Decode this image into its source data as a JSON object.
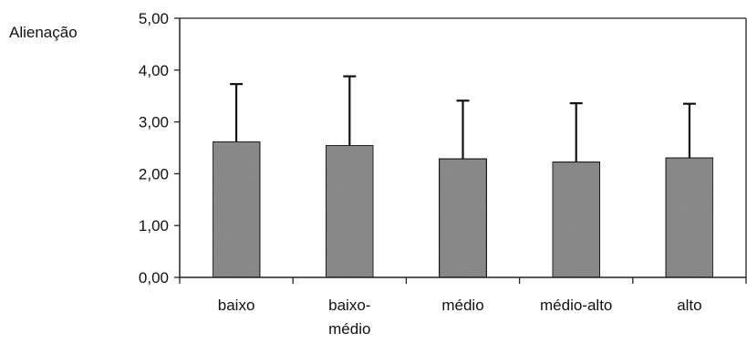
{
  "chart_data": {
    "type": "bar",
    "title": "",
    "ylabel": "Alienação",
    "xlabel": "",
    "categories": [
      [
        "baixo"
      ],
      [
        "baixo-",
        "médio"
      ],
      [
        "médio"
      ],
      [
        "médio-alto"
      ],
      [
        "alto"
      ]
    ],
    "values": [
      2.62,
      2.55,
      2.29,
      2.23,
      2.31
    ],
    "error_upper": [
      3.73,
      3.88,
      3.41,
      3.36,
      3.35
    ],
    "ylim": [
      0,
      5
    ],
    "yticks": [
      {
        "value": 0,
        "label": "0,00"
      },
      {
        "value": 1,
        "label": "1,00"
      },
      {
        "value": 2,
        "label": "2,00"
      },
      {
        "value": 3,
        "label": "3,00"
      },
      {
        "value": 4,
        "label": "4,00"
      },
      {
        "value": 5,
        "label": "5,00"
      }
    ],
    "grid": false,
    "legend": "none",
    "colors": {
      "bar_fill": "#8e8e8e",
      "bar_stroke": "#1e1e1e",
      "axis": "#222222",
      "error_bar": "#111111"
    }
  }
}
